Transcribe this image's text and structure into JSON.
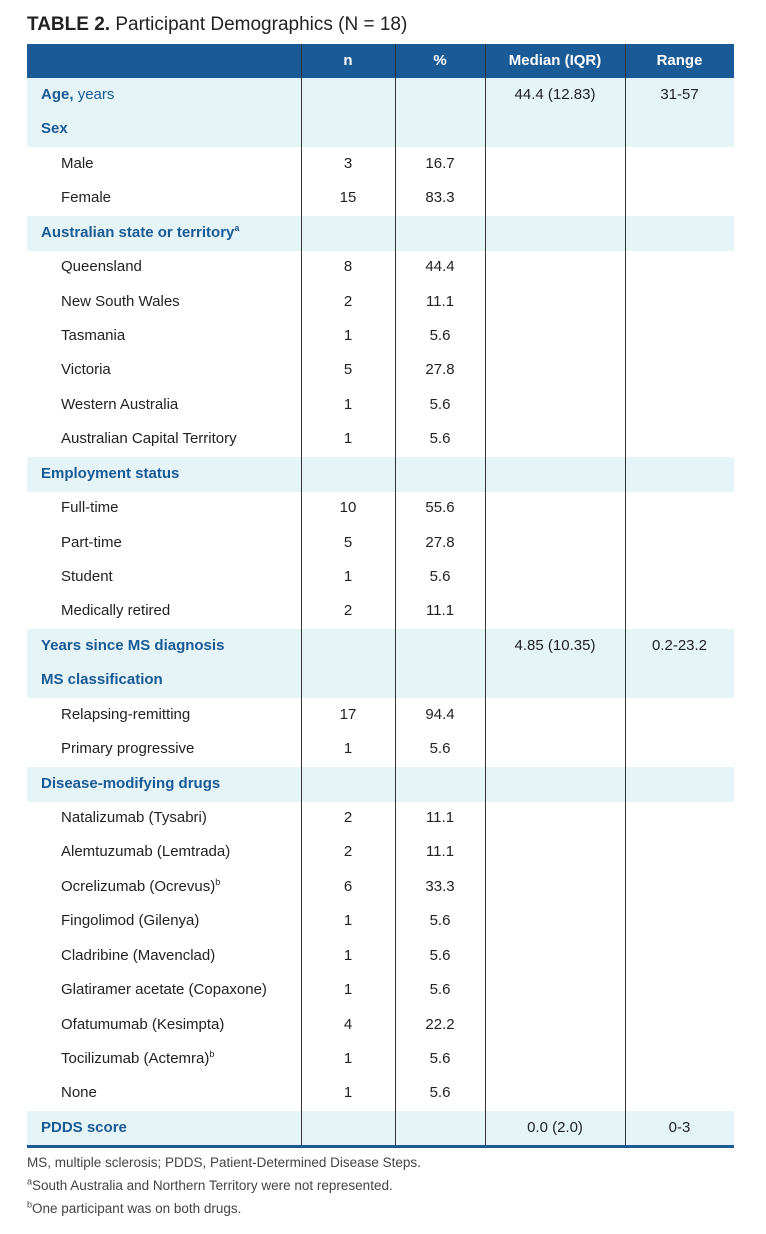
{
  "title": {
    "label": "TABLE 2.",
    "text": "Participant Demographics (N = 18)"
  },
  "table": {
    "header": [
      "n",
      "%",
      "Median (IQR)",
      "Range"
    ],
    "rows": [
      {
        "label": "Age,",
        "label_suffix": "years",
        "section": true,
        "median": "44.4 (12.83)",
        "range": "31-57"
      },
      {
        "label": "Sex",
        "section": true
      },
      {
        "label": "Male",
        "n": "3",
        "pct": "16.7"
      },
      {
        "label": "Female",
        "n": "15",
        "pct": "83.3"
      },
      {
        "label": "Australian state or territory",
        "sup": "a",
        "section": true
      },
      {
        "label": "Queensland",
        "n": "8",
        "pct": "44.4"
      },
      {
        "label": "New South Wales",
        "n": "2",
        "pct": "11.1"
      },
      {
        "label": "Tasmania",
        "n": "1",
        "pct": "5.6"
      },
      {
        "label": "Victoria",
        "n": "5",
        "pct": "27.8"
      },
      {
        "label": "Western Australia",
        "n": "1",
        "pct": "5.6"
      },
      {
        "label": "Australian Capital Territory",
        "n": "1",
        "pct": "5.6"
      },
      {
        "label": "Employment status",
        "section": true
      },
      {
        "label": "Full-time",
        "n": "10",
        "pct": "55.6"
      },
      {
        "label": "Part-time",
        "n": "5",
        "pct": "27.8"
      },
      {
        "label": "Student",
        "n": "1",
        "pct": "5.6"
      },
      {
        "label": "Medically retired",
        "n": "2",
        "pct": "11.1"
      },
      {
        "label": "Years since MS diagnosis",
        "section": true,
        "median": "4.85 (10.35)",
        "range": "0.2-23.2"
      },
      {
        "label": "MS classification",
        "section": true
      },
      {
        "label": "Relapsing-remitting",
        "n": "17",
        "pct": "94.4"
      },
      {
        "label": "Primary progressive",
        "n": "1",
        "pct": "5.6"
      },
      {
        "label": "Disease-modifying drugs",
        "section": true
      },
      {
        "label": "Natalizumab (Tysabri)",
        "n": "2",
        "pct": "11.1"
      },
      {
        "label": "Alemtuzumab (Lemtrada)",
        "n": "2",
        "pct": "11.1"
      },
      {
        "label": "Ocrelizumab (Ocrevus)",
        "sup": "b",
        "n": "6",
        "pct": "33.3"
      },
      {
        "label": "Fingolimod (Gilenya)",
        "n": "1",
        "pct": "5.6"
      },
      {
        "label": "Cladribine (Mavenclad)",
        "n": "1",
        "pct": "5.6"
      },
      {
        "label": "Glatiramer acetate (Copaxone)",
        "n": "1",
        "pct": "5.6"
      },
      {
        "label": "Ofatumumab (Kesimpta)",
        "n": "4",
        "pct": "22.2"
      },
      {
        "label": "Tocilizumab (Actemra)",
        "sup": "b",
        "n": "1",
        "pct": "5.6"
      },
      {
        "label": "None",
        "n": "1",
        "pct": "5.6"
      },
      {
        "label": "PDDS score",
        "section": true,
        "median": "0.0 (2.0)",
        "range": "0-3"
      }
    ]
  },
  "footnotes": [
    {
      "text": "MS, multiple sclerosis; PDDS, Patient-Determined Disease Steps."
    },
    {
      "sup": "a",
      "text": "South Australia and Northern Territory were not represented."
    },
    {
      "sup": "b",
      "text": "One participant was on both drugs."
    }
  ]
}
